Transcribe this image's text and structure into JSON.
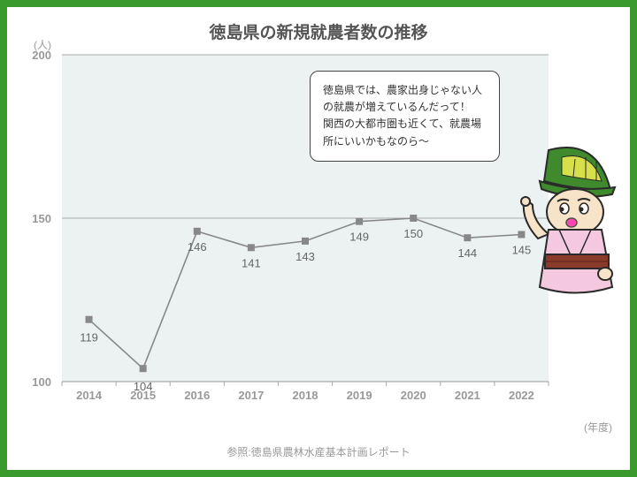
{
  "title": "徳島県の新規就農者数の推移",
  "ylabel": "(人)",
  "xlabel": "(年度)",
  "source": "参照:徳島県農林水産基本計画レポート",
  "border_color": "#3a9a2e",
  "title_color": "#555555",
  "title_fontsize": 19,
  "axis_color": "#999999",
  "source_color": "#999999",
  "value_color": "#666666",
  "chart": {
    "type": "line",
    "categories": [
      "2014",
      "2015",
      "2016",
      "2017",
      "2018",
      "2019",
      "2020",
      "2021",
      "2022"
    ],
    "values": [
      119,
      104,
      146,
      141,
      143,
      149,
      150,
      144,
      145
    ],
    "ylim": [
      100,
      200
    ],
    "yticks": [
      100,
      150,
      200
    ],
    "plot_bg": "#ecf1f1",
    "grid_color": "#aaaaaa",
    "axis_line_color": "#aaaaaa",
    "line_color": "#888888",
    "line_width": 1.6,
    "marker_shape": "square",
    "marker_size": 8,
    "marker_color": "#888888"
  },
  "speech_text": "徳島県では、農家出身じゃない人の就農が増えているんだって！　関西の大都市圏も近くて、就農場所にいいかもなのら～",
  "mascot": {
    "name": "sudachi-character",
    "hat_color": "#3e8a2c",
    "hat_highlight": "#d7e04a",
    "face_color": "#f7e3c8",
    "kimono_color": "#f4c8de",
    "obi_color": "#8a3a2a",
    "outline": "#2a2a2a"
  }
}
